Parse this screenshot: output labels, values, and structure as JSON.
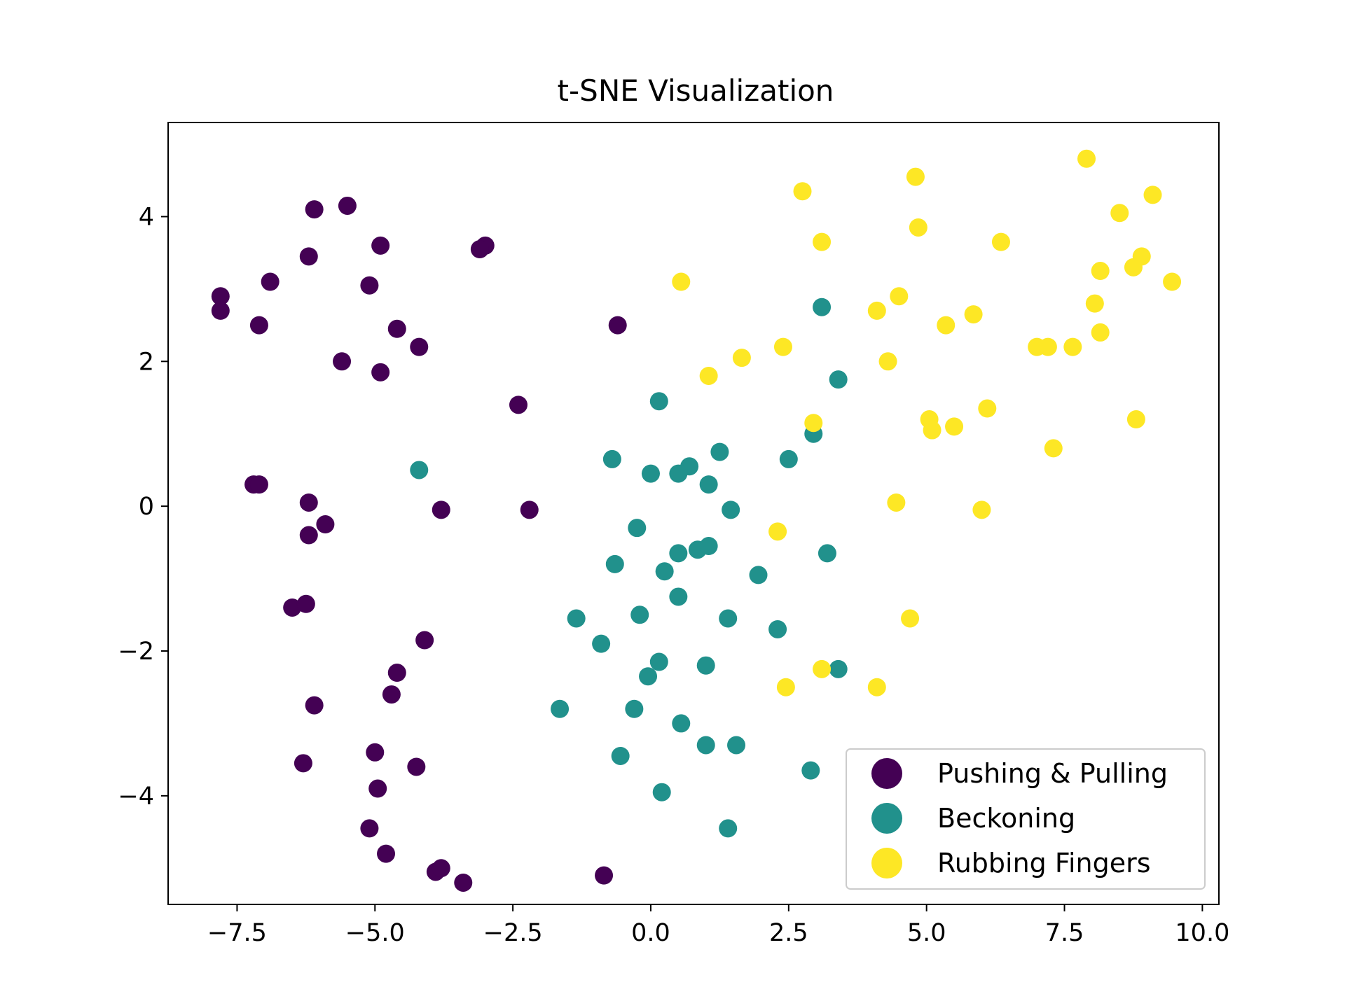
{
  "chart_data": {
    "type": "scatter",
    "title": "t-SNE Visualization",
    "xlabel": "",
    "ylabel": "",
    "xlim": [
      -8.75,
      10.3
    ],
    "ylim": [
      -5.5,
      5.3
    ],
    "xticks": [
      -7.5,
      -5.0,
      -2.5,
      0.0,
      2.5,
      5.0,
      7.5,
      10.0
    ],
    "xtick_labels": [
      "−7.5",
      "−5.0",
      "−2.5",
      "0.0",
      "2.5",
      "5.0",
      "7.5",
      "10.0"
    ],
    "yticks": [
      -4,
      -2,
      0,
      2,
      4
    ],
    "ytick_labels": [
      "−4",
      "−2",
      "0",
      "2",
      "4"
    ],
    "grid": false,
    "legend_position": "lower-right",
    "series": [
      {
        "name": "Pushing & Pulling",
        "color": "#440154",
        "points": [
          [
            -7.8,
            2.9
          ],
          [
            -7.8,
            2.7
          ],
          [
            -7.1,
            2.5
          ],
          [
            -6.9,
            3.1
          ],
          [
            -6.1,
            4.1
          ],
          [
            -6.2,
            3.45
          ],
          [
            -5.5,
            4.15
          ],
          [
            -4.9,
            3.6
          ],
          [
            -5.1,
            3.05
          ],
          [
            -4.6,
            2.45
          ],
          [
            -4.2,
            2.2
          ],
          [
            -5.6,
            2.0
          ],
          [
            -4.9,
            1.85
          ],
          [
            -3.0,
            3.6
          ],
          [
            -3.1,
            3.55
          ],
          [
            -0.6,
            2.5
          ],
          [
            -2.4,
            1.4
          ],
          [
            -7.2,
            0.3
          ],
          [
            -7.1,
            0.3
          ],
          [
            -6.2,
            0.05
          ],
          [
            -5.9,
            -0.25
          ],
          [
            -6.2,
            -0.4
          ],
          [
            -3.8,
            -0.05
          ],
          [
            -2.2,
            -0.05
          ],
          [
            -6.5,
            -1.4
          ],
          [
            -6.25,
            -1.35
          ],
          [
            -4.1,
            -1.85
          ],
          [
            -4.6,
            -2.3
          ],
          [
            -4.7,
            -2.6
          ],
          [
            -6.1,
            -2.75
          ],
          [
            -6.3,
            -3.55
          ],
          [
            -5.0,
            -3.4
          ],
          [
            -4.25,
            -3.6
          ],
          [
            -4.95,
            -3.9
          ],
          [
            -5.1,
            -4.45
          ],
          [
            -4.8,
            -4.8
          ],
          [
            -3.9,
            -5.05
          ],
          [
            -3.8,
            -5.0
          ],
          [
            -3.4,
            -5.2
          ],
          [
            -0.85,
            -5.1
          ]
        ]
      },
      {
        "name": "Beckoning",
        "color": "#21918c",
        "points": [
          [
            3.1,
            2.75
          ],
          [
            3.4,
            1.75
          ],
          [
            0.15,
            1.45
          ],
          [
            2.95,
            1.0
          ],
          [
            2.5,
            0.65
          ],
          [
            1.25,
            0.75
          ],
          [
            0.7,
            0.55
          ],
          [
            -0.7,
            0.65
          ],
          [
            -4.2,
            0.5
          ],
          [
            0.0,
            0.45
          ],
          [
            0.5,
            0.45
          ],
          [
            1.05,
            0.3
          ],
          [
            1.45,
            -0.05
          ],
          [
            -0.25,
            -0.3
          ],
          [
            0.5,
            -0.65
          ],
          [
            0.85,
            -0.6
          ],
          [
            1.05,
            -0.55
          ],
          [
            3.2,
            -0.65
          ],
          [
            -0.65,
            -0.8
          ],
          [
            0.25,
            -0.9
          ],
          [
            1.95,
            -0.95
          ],
          [
            0.5,
            -1.25
          ],
          [
            -1.35,
            -1.55
          ],
          [
            -0.2,
            -1.5
          ],
          [
            1.4,
            -1.55
          ],
          [
            2.3,
            -1.7
          ],
          [
            -0.9,
            -1.9
          ],
          [
            0.15,
            -2.15
          ],
          [
            -0.05,
            -2.35
          ],
          [
            1.0,
            -2.2
          ],
          [
            3.4,
            -2.25
          ],
          [
            -1.65,
            -2.8
          ],
          [
            -0.3,
            -2.8
          ],
          [
            0.55,
            -3.0
          ],
          [
            1.0,
            -3.3
          ],
          [
            1.55,
            -3.3
          ],
          [
            -0.55,
            -3.45
          ],
          [
            2.9,
            -3.65
          ],
          [
            0.2,
            -3.95
          ],
          [
            1.4,
            -4.45
          ]
        ]
      },
      {
        "name": "Rubbing Fingers",
        "color": "#fde725",
        "points": [
          [
            7.9,
            4.8
          ],
          [
            4.8,
            4.55
          ],
          [
            2.75,
            4.35
          ],
          [
            9.1,
            4.3
          ],
          [
            8.5,
            4.05
          ],
          [
            4.85,
            3.85
          ],
          [
            3.1,
            3.65
          ],
          [
            6.35,
            3.65
          ],
          [
            8.9,
            3.45
          ],
          [
            8.75,
            3.3
          ],
          [
            8.15,
            3.25
          ],
          [
            0.55,
            3.1
          ],
          [
            9.45,
            3.1
          ],
          [
            4.5,
            2.9
          ],
          [
            8.05,
            2.8
          ],
          [
            4.1,
            2.7
          ],
          [
            5.85,
            2.65
          ],
          [
            5.35,
            2.5
          ],
          [
            8.15,
            2.4
          ],
          [
            2.4,
            2.2
          ],
          [
            7.0,
            2.2
          ],
          [
            7.2,
            2.2
          ],
          [
            7.65,
            2.2
          ],
          [
            1.65,
            2.05
          ],
          [
            4.3,
            2.0
          ],
          [
            1.05,
            1.8
          ],
          [
            6.1,
            1.35
          ],
          [
            5.05,
            1.2
          ],
          [
            5.5,
            1.1
          ],
          [
            5.1,
            1.05
          ],
          [
            2.95,
            1.15
          ],
          [
            8.8,
            1.2
          ],
          [
            7.3,
            0.8
          ],
          [
            4.45,
            0.05
          ],
          [
            6.0,
            -0.05
          ],
          [
            2.3,
            -0.35
          ],
          [
            4.7,
            -1.55
          ],
          [
            3.1,
            -2.25
          ],
          [
            2.45,
            -2.5
          ],
          [
            4.1,
            -2.5
          ]
        ]
      }
    ]
  }
}
